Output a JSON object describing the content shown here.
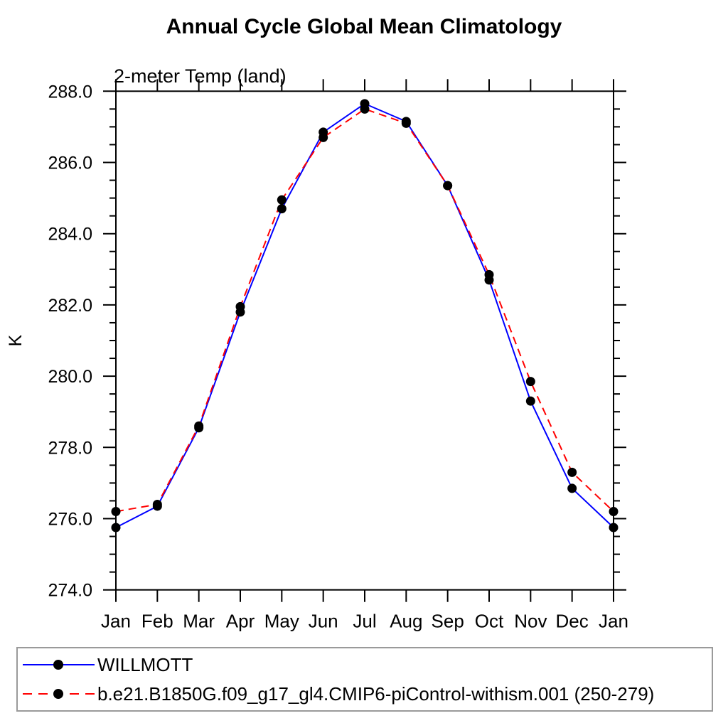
{
  "chart_data": {
    "type": "line",
    "title": "Annual Cycle Global Mean Climatology",
    "subtitle": "2-meter Temp (land)",
    "ylabel": "K",
    "categories": [
      "Jan",
      "Feb",
      "Mar",
      "Apr",
      "May",
      "Jun",
      "Jul",
      "Aug",
      "Sep",
      "Oct",
      "Nov",
      "Dec",
      "Jan"
    ],
    "ylim": [
      274.0,
      288.0
    ],
    "ytick_step": 2.0,
    "yminor_step": 0.5,
    "ytick_labels": [
      "274.0",
      "276.0",
      "278.0",
      "280.0",
      "282.0",
      "284.0",
      "286.0",
      "288.0"
    ],
    "grid": false,
    "legend_position": "bottom",
    "series": [
      {
        "name": "WILLMOTT",
        "color": "#0000ff",
        "line_style": "solid",
        "marker": "black-dot",
        "values": [
          275.75,
          276.35,
          278.55,
          281.8,
          284.7,
          286.85,
          287.65,
          287.15,
          285.35,
          282.7,
          279.3,
          276.85,
          275.75
        ]
      },
      {
        "name": "b.e21.B1850G.f09_g17_gl4.CMIP6-piControl-withism.001 (250-279)",
        "color": "#ff0000",
        "line_style": "dashed",
        "marker": "black-dot",
        "values": [
          276.2,
          276.4,
          278.6,
          281.95,
          284.95,
          286.7,
          287.5,
          287.1,
          285.35,
          282.85,
          279.85,
          277.3,
          276.2
        ]
      }
    ]
  },
  "colors": {
    "axis": "#000000",
    "marker": "#000000",
    "legend_border": "#9a9a9a"
  }
}
